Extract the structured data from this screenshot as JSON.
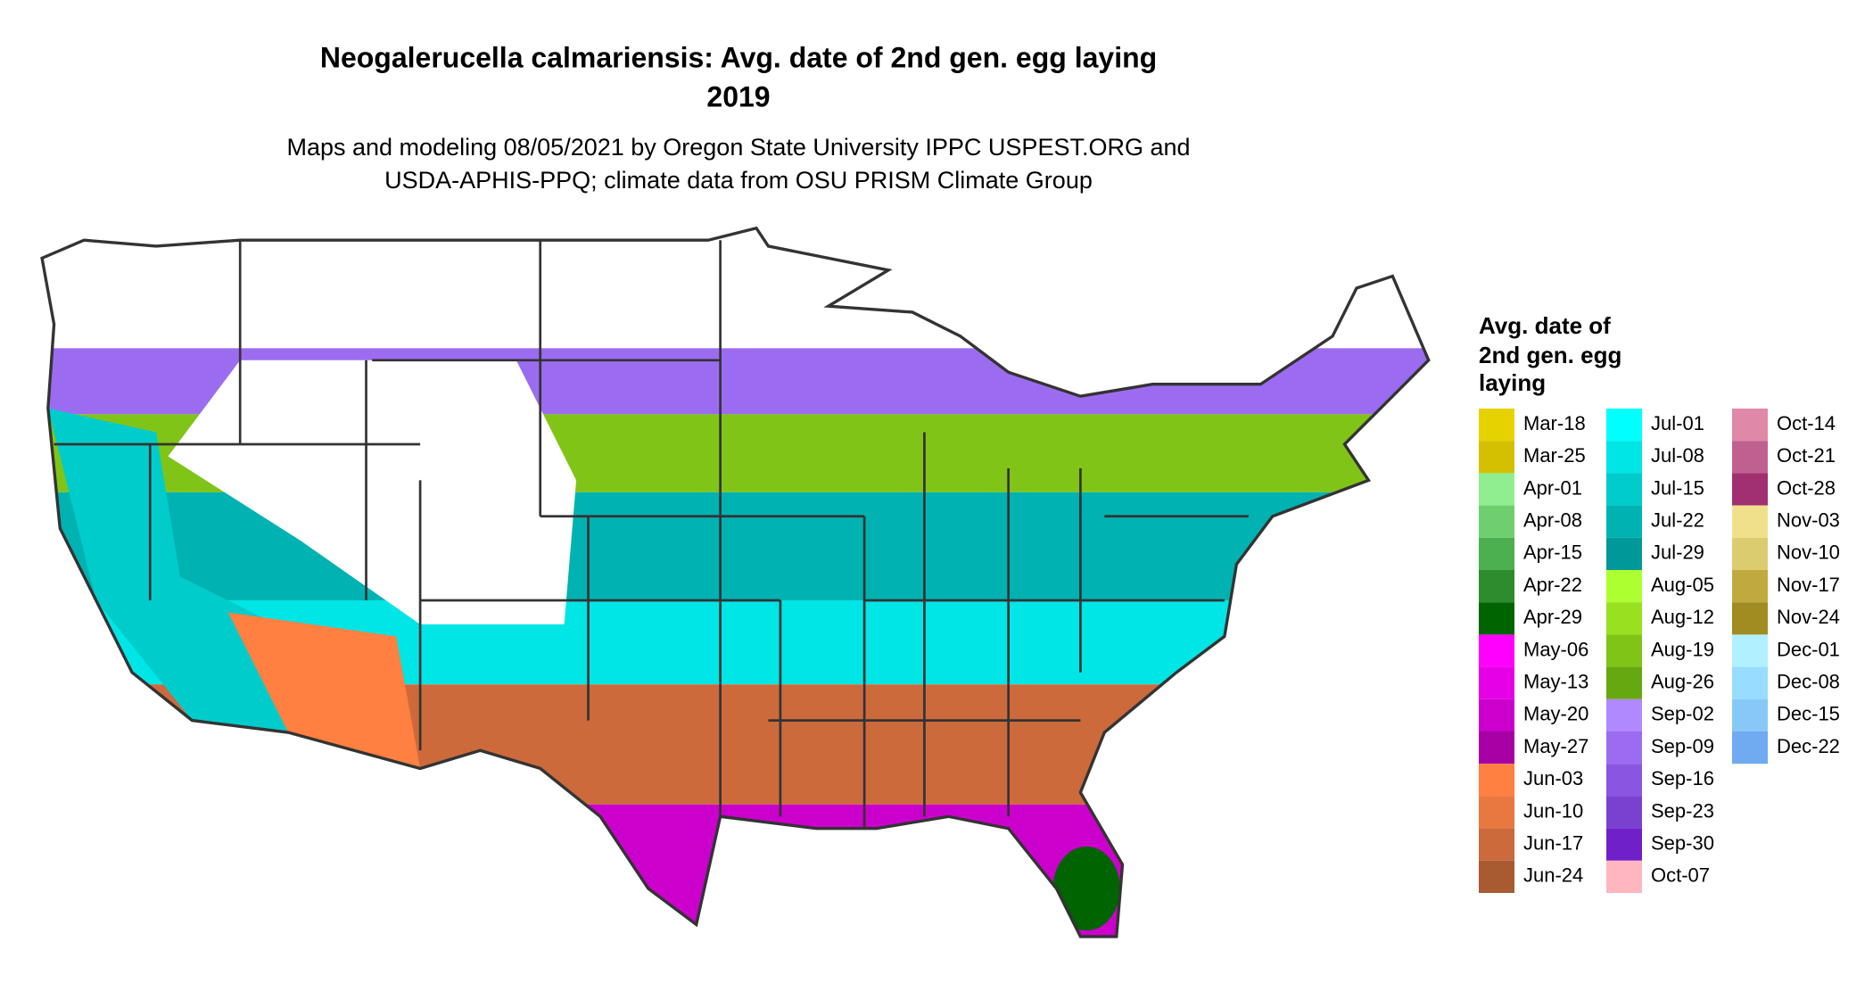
{
  "title": [
    "Neogalerucella calmariensis: Avg. date of 2nd gen. egg laying",
    "2019"
  ],
  "subtitle": [
    "Maps and modeling 08/05/2021 by Oregon State University IPPC USPEST.ORG and",
    "USDA-APHIS-PPQ; climate data from OSU PRISM Climate Group"
  ],
  "legend": {
    "title": [
      "Avg. date of",
      "2nd gen. egg",
      "laying"
    ],
    "items": [
      {
        "label": "Mar-18",
        "color": "#e6d200"
      },
      {
        "label": "Mar-25",
        "color": "#d4c000"
      },
      {
        "label": "Apr-01",
        "color": "#90ee90"
      },
      {
        "label": "Apr-08",
        "color": "#6fcf6f"
      },
      {
        "label": "Apr-15",
        "color": "#4caf50"
      },
      {
        "label": "Apr-22",
        "color": "#2e8b2e"
      },
      {
        "label": "Apr-29",
        "color": "#006400"
      },
      {
        "label": "May-06",
        "color": "#ff00ff"
      },
      {
        "label": "May-13",
        "color": "#e600e6"
      },
      {
        "label": "May-20",
        "color": "#cc00cc"
      },
      {
        "label": "May-27",
        "color": "#a600a6"
      },
      {
        "label": "Jun-03",
        "color": "#ff8040"
      },
      {
        "label": "Jun-10",
        "color": "#e87840"
      },
      {
        "label": "Jun-17",
        "color": "#cc6a3c"
      },
      {
        "label": "Jun-24",
        "color": "#a85a30"
      },
      {
        "label": "Jul-01",
        "color": "#00ffff"
      },
      {
        "label": "Jul-08",
        "color": "#00e5e5"
      },
      {
        "label": "Jul-15",
        "color": "#00cccc"
      },
      {
        "label": "Jul-22",
        "color": "#00b2b2"
      },
      {
        "label": "Jul-29",
        "color": "#009999"
      },
      {
        "label": "Aug-05",
        "color": "#adff2f"
      },
      {
        "label": "Aug-12",
        "color": "#98e020"
      },
      {
        "label": "Aug-19",
        "color": "#80c418"
      },
      {
        "label": "Aug-26",
        "color": "#66a810"
      },
      {
        "label": "Sep-02",
        "color": "#b088ff"
      },
      {
        "label": "Sep-09",
        "color": "#9c6cf0"
      },
      {
        "label": "Sep-16",
        "color": "#8a55e0"
      },
      {
        "label": "Sep-23",
        "color": "#7a40d0"
      },
      {
        "label": "Sep-30",
        "color": "#7020c8"
      },
      {
        "label": "Oct-07",
        "color": "#ffb6c1"
      },
      {
        "label": "Oct-14",
        "color": "#e088a8"
      },
      {
        "label": "Oct-21",
        "color": "#c06090"
      },
      {
        "label": "Oct-28",
        "color": "#a03070"
      },
      {
        "label": "Nov-03",
        "color": "#f0e08c"
      },
      {
        "label": "Nov-10",
        "color": "#dccc70"
      },
      {
        "label": "Nov-17",
        "color": "#c0aa40"
      },
      {
        "label": "Nov-24",
        "color": "#a08c20"
      },
      {
        "label": "Dec-01",
        "color": "#b0f0ff"
      },
      {
        "label": "Dec-08",
        "color": "#98dcff"
      },
      {
        "label": "Dec-15",
        "color": "#88c8f8"
      },
      {
        "label": "Dec-22",
        "color": "#70aaf0"
      }
    ]
  }
}
